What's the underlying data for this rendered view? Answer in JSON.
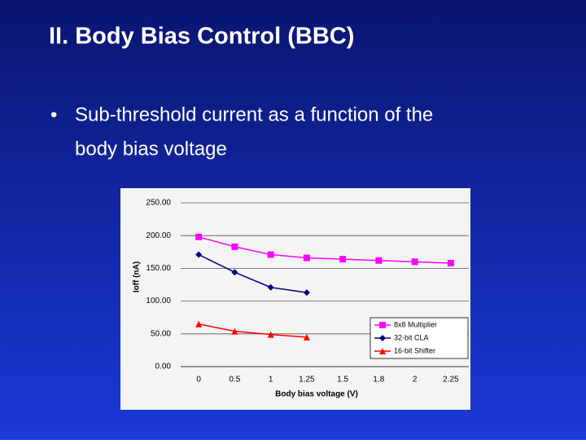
{
  "slide": {
    "title": "II. Body Bias Control (BBC)",
    "bullet": [
      "Sub-threshold current as a function of the",
      "body bias voltage"
    ]
  },
  "chart_data": {
    "type": "line",
    "ylabel": "Ioff (nA)",
    "xlabel": "Body bias voltage (V)",
    "categories": [
      "0",
      "0.5",
      "1",
      "1.25",
      "1.5",
      "1.8",
      "2",
      "2.25"
    ],
    "ylim": [
      0,
      250
    ],
    "yticks": [
      {
        "value": 0,
        "label": "0.00"
      },
      {
        "value": 50,
        "label": "50.00"
      },
      {
        "value": 100,
        "label": "100.00"
      },
      {
        "value": 150,
        "label": "150.00"
      },
      {
        "value": 200,
        "label": "200.00"
      },
      {
        "value": 250,
        "label": "250.00"
      }
    ],
    "grid": true,
    "legend": "lower right",
    "series": [
      {
        "name": "8x8 Multiplier",
        "color": "#ff00ff",
        "marker": "square",
        "values": [
          198,
          183,
          171,
          166,
          164,
          162,
          160,
          158
        ]
      },
      {
        "name": "32-bit CLA",
        "color": "#000080",
        "marker": "diamond",
        "values": [
          171,
          144,
          121,
          113,
          null,
          null,
          null,
          null
        ]
      },
      {
        "name": "16-bit Shifter",
        "color": "#ff0000",
        "marker": "triangle",
        "values": [
          65,
          54,
          49,
          45,
          null,
          null,
          null,
          null
        ]
      }
    ]
  }
}
